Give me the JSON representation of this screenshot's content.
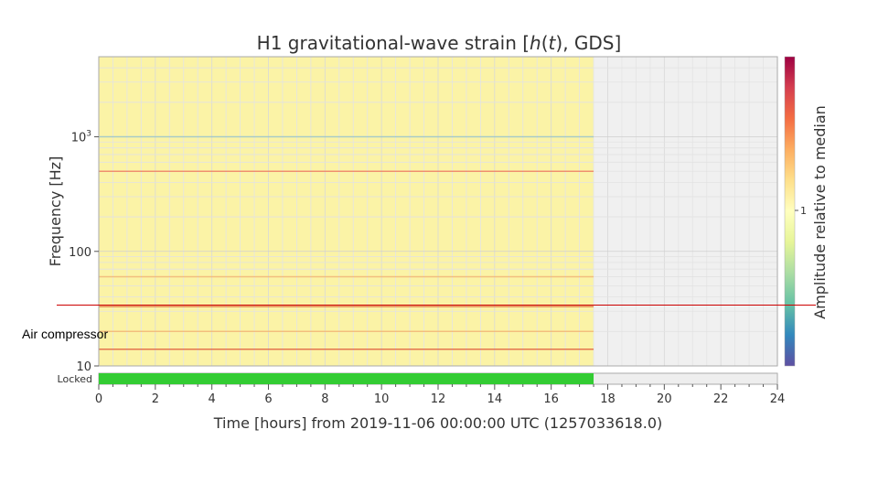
{
  "chart_data": {
    "type": "heatmap",
    "title_prefix": "H1 gravitational-wave strain [",
    "title_h": "h",
    "title_paren_open": "(",
    "title_t": "t",
    "title_suffix": "), GDS]",
    "xlabel": "Time [hours] from 2019-11-06 00:00:00 UTC (1257033618.0)",
    "ylabel": "Frequency [Hz]",
    "x_ticks": [
      "0",
      "2",
      "4",
      "6",
      "8",
      "10",
      "12",
      "14",
      "16",
      "18",
      "20",
      "22",
      "24"
    ],
    "xlim": [
      0,
      24
    ],
    "y_scale": "log",
    "ylim": [
      10,
      5000
    ],
    "y_ticks": [
      {
        "value": 10,
        "label": "10"
      },
      {
        "value": 100,
        "label": "100"
      },
      {
        "value": 1000,
        "label": "10",
        "sup": "3"
      }
    ],
    "data_end_hours": 17.5,
    "lines": [
      {
        "frequency_hz": 1000,
        "color": "#9fc8c8"
      },
      {
        "frequency_hz": 500,
        "color": "#f08060"
      },
      {
        "frequency_hz": 60,
        "color": "#f4b870"
      },
      {
        "frequency_hz": 33,
        "color": "#e07040"
      },
      {
        "frequency_hz": 20,
        "color": "#f4b870"
      },
      {
        "frequency_hz": 14,
        "color": "#e06040"
      }
    ],
    "colorbar": {
      "label": "Amplitude relative to median",
      "tick": "1",
      "colors": [
        "#9e0142",
        "#d53e4f",
        "#f46d43",
        "#fdae61",
        "#fee08b",
        "#ffffbf",
        "#e6f598",
        "#abdda4",
        "#66c2a5",
        "#3288bd",
        "#5e4fa2"
      ]
    },
    "state_bar": {
      "label": "Locked",
      "active_until_hours": 17.5,
      "active_color": "#33cc33",
      "inactive_color": "#eeeeee"
    },
    "annotation": {
      "text": "Air compressor",
      "frequency_hz": 34,
      "line_color": "#cc0000"
    },
    "grid": true
  }
}
